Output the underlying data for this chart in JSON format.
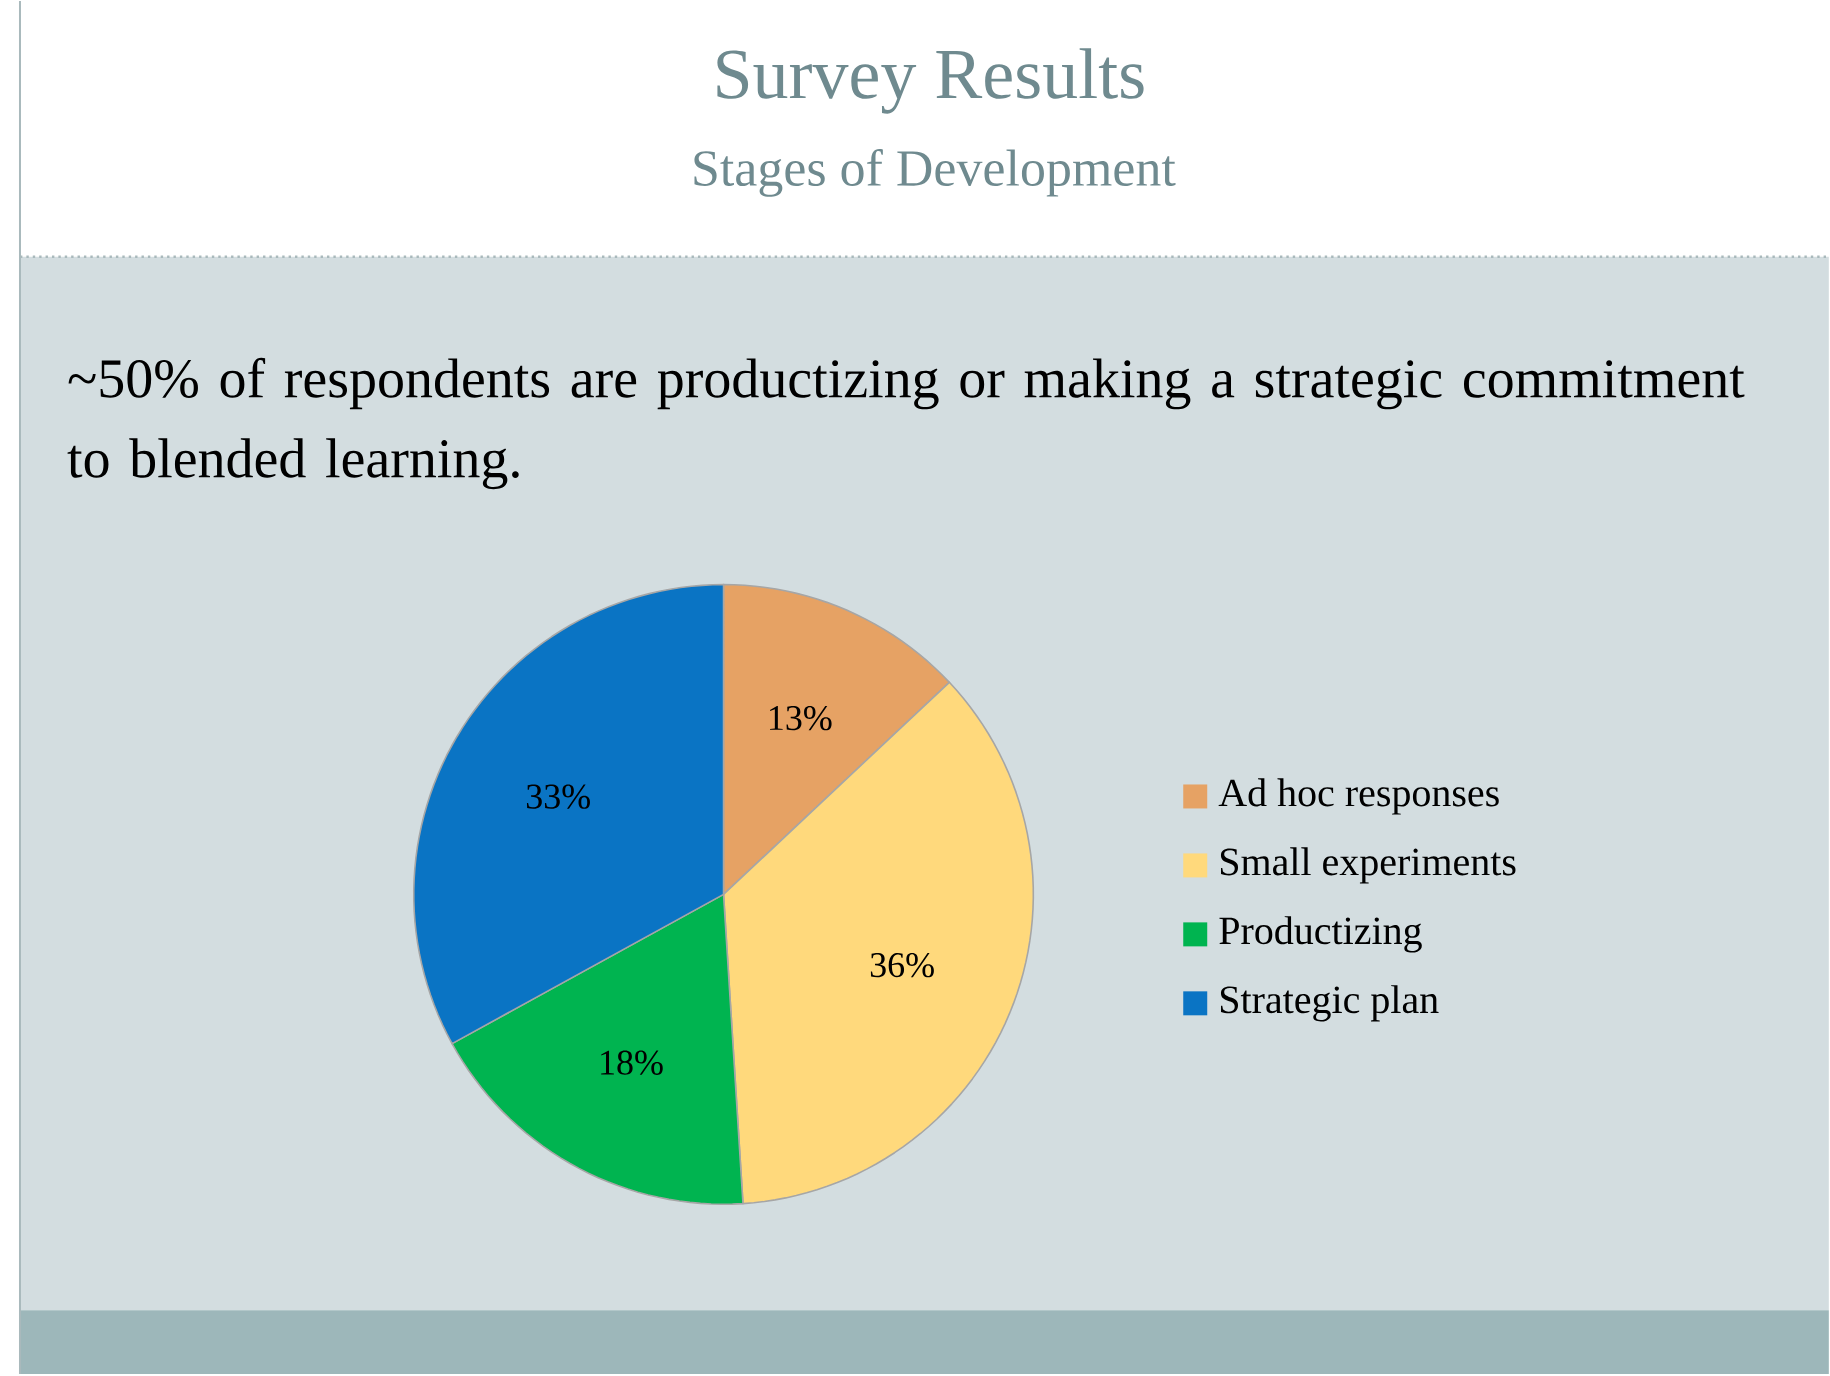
{
  "chart_data": {
    "type": "pie",
    "title": "Survey Results",
    "subtitle": "Stages of Development",
    "annotations": [
      "~50% of respondents are productizing or making a strategic commitment to blended learning."
    ],
    "categories": [
      "Ad hoc responses",
      "Small experiments",
      "Productizing",
      "Strategic plan"
    ],
    "values": [
      13,
      36,
      18,
      33
    ],
    "colors": [
      "#e6a264",
      "#ffd97c",
      "#00b450",
      "#0a74c4"
    ],
    "value_labels": [
      "13%",
      "36%",
      "18%",
      "33%"
    ],
    "legend": "right"
  }
}
